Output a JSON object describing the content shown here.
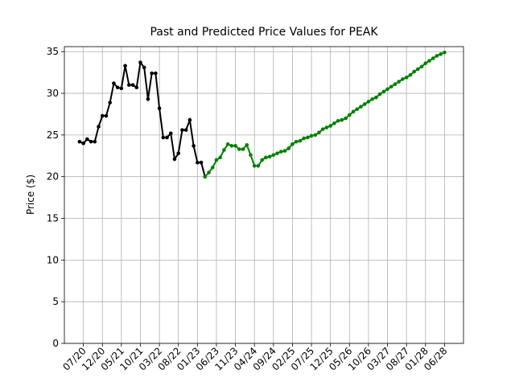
{
  "chart_data": {
    "type": "line",
    "title": "Past and Predicted Price Values for PEAK",
    "y_label": "Price ($)",
    "grid": true,
    "xlim": [
      "02/20",
      "11/28"
    ],
    "xticks": [
      "07/20",
      "12/20",
      "05/21",
      "10/21",
      "03/22",
      "08/22",
      "01/23",
      "06/23",
      "11/23",
      "04/24",
      "09/24",
      "02/25",
      "07/25",
      "12/25",
      "05/26",
      "10/26",
      "03/27",
      "08/27",
      "01/28",
      "06/28"
    ],
    "ylim": [
      0,
      35.6
    ],
    "yticks": [
      0,
      5,
      10,
      15,
      20,
      25,
      30,
      35
    ],
    "series": [
      {
        "color": "#000000",
        "x": [
          "06/20",
          "07/20",
          "08/20",
          "09/20",
          "10/20",
          "11/20",
          "12/20",
          "01/21",
          "02/21",
          "03/21",
          "04/21",
          "05/21",
          "06/21",
          "07/21",
          "08/21",
          "09/21",
          "10/21",
          "11/21",
          "12/21",
          "01/22",
          "02/22",
          "03/22",
          "04/22",
          "05/22",
          "06/22",
          "07/22",
          "08/22",
          "09/22",
          "10/22",
          "11/22",
          "12/22",
          "01/23",
          "02/23",
          "03/23"
        ],
        "values": [
          24.2,
          24.0,
          24.5,
          24.2,
          24.2,
          26.0,
          27.3,
          27.3,
          28.9,
          31.2,
          30.7,
          30.6,
          33.3,
          31.0,
          31.0,
          30.7,
          33.7,
          33.1,
          29.3,
          32.4,
          32.4,
          28.2,
          24.7,
          24.7,
          25.2,
          22.1,
          22.8,
          25.6,
          25.6,
          26.8,
          23.7,
          21.7,
          21.7,
          20.0
        ]
      },
      {
        "color": "#008000",
        "x": [
          "03/23",
          "04/23",
          "05/23",
          "06/23",
          "07/23",
          "08/23",
          "09/23",
          "10/23",
          "11/23",
          "12/23",
          "01/24",
          "02/24",
          "03/24",
          "04/24",
          "05/24",
          "06/24",
          "07/24",
          "08/24",
          "09/24",
          "10/24",
          "11/24",
          "12/24",
          "01/25",
          "02/25",
          "03/25",
          "04/25",
          "05/25",
          "06/25",
          "07/25",
          "08/25",
          "09/25",
          "10/25",
          "11/25",
          "12/25",
          "01/26",
          "02/26",
          "03/26",
          "04/26",
          "05/26",
          "06/26",
          "07/26",
          "08/26",
          "09/26",
          "10/26",
          "11/26",
          "12/26",
          "01/27",
          "02/27",
          "03/27",
          "04/27",
          "05/27",
          "06/27",
          "07/27",
          "08/27",
          "09/27",
          "10/27",
          "11/27",
          "12/27",
          "01/28",
          "02/28",
          "03/28",
          "04/28",
          "05/28",
          "06/28"
        ],
        "values": [
          20.0,
          20.5,
          21.1,
          22.0,
          22.3,
          23.2,
          23.9,
          23.7,
          23.7,
          23.3,
          23.3,
          23.8,
          22.6,
          21.3,
          21.3,
          22.0,
          22.3,
          22.4,
          22.6,
          22.8,
          23.0,
          23.1,
          23.4,
          23.9,
          24.2,
          24.3,
          24.6,
          24.7,
          24.9,
          25.0,
          25.3,
          25.7,
          25.9,
          26.1,
          26.4,
          26.7,
          26.8,
          27.0,
          27.4,
          27.8,
          28.1,
          28.4,
          28.7,
          29.0,
          29.3,
          29.5,
          29.9,
          30.2,
          30.5,
          30.8,
          31.1,
          31.4,
          31.7,
          31.9,
          32.2,
          32.6,
          32.9,
          33.2,
          33.6,
          33.9,
          34.2,
          34.5,
          34.7,
          34.9
        ]
      }
    ]
  }
}
